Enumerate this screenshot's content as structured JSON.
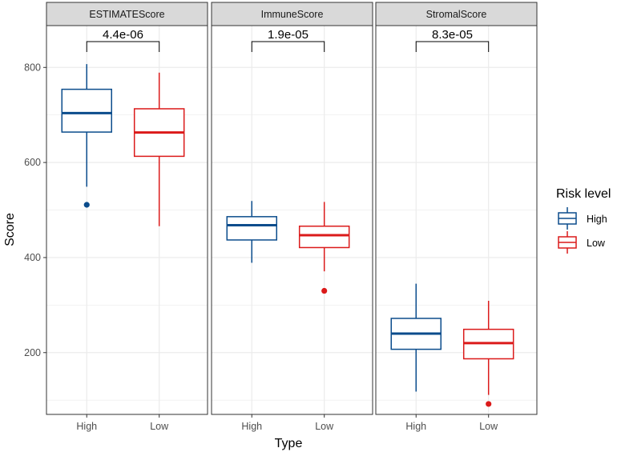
{
  "chart_data": {
    "type": "boxplot",
    "ylabel": "Score",
    "xlabel": "Type",
    "ylim": [
      70,
      888
    ],
    "y_ticks": [
      200,
      400,
      600,
      800
    ],
    "categories": [
      "High",
      "Low"
    ],
    "legend": {
      "title": "Risk level",
      "position": "right",
      "entries": [
        {
          "label": "High",
          "color": "#0B4C8C"
        },
        {
          "label": "Low",
          "color": "#DB1A1A"
        }
      ]
    },
    "panels": [
      {
        "title": "ESTIMATEScore",
        "pvalue": "4.4e-06",
        "boxes": [
          {
            "group": "High",
            "q1": 664,
            "median": 704,
            "q3": 754,
            "whisker_low": 549,
            "whisker_high": 807,
            "outliers": [
              511
            ]
          },
          {
            "group": "Low",
            "q1": 613,
            "median": 663,
            "q3": 713,
            "whisker_low": 466,
            "whisker_high": 789,
            "outliers": []
          }
        ]
      },
      {
        "title": "ImmuneScore",
        "pvalue": "1.9e-05",
        "boxes": [
          {
            "group": "High",
            "q1": 437,
            "median": 468,
            "q3": 486,
            "whisker_low": 389,
            "whisker_high": 519,
            "outliers": []
          },
          {
            "group": "Low",
            "q1": 421,
            "median": 447,
            "q3": 466,
            "whisker_low": 371,
            "whisker_high": 517,
            "outliers": [
              330
            ]
          }
        ]
      },
      {
        "title": "StromalScore",
        "pvalue": "8.3e-05",
        "boxes": [
          {
            "group": "High",
            "q1": 207,
            "median": 240,
            "q3": 272,
            "whisker_low": 118,
            "whisker_high": 345,
            "outliers": []
          },
          {
            "group": "Low",
            "q1": 187,
            "median": 220,
            "q3": 249,
            "whisker_low": 111,
            "whisker_high": 309,
            "outliers": [
              92
            ]
          }
        ]
      }
    ],
    "colors": {
      "panel_bg": "#FFFFFF",
      "strip_bg": "#D9D9D9",
      "grid": "#EBEBEB",
      "axis_text": "#4D4D4D"
    }
  }
}
